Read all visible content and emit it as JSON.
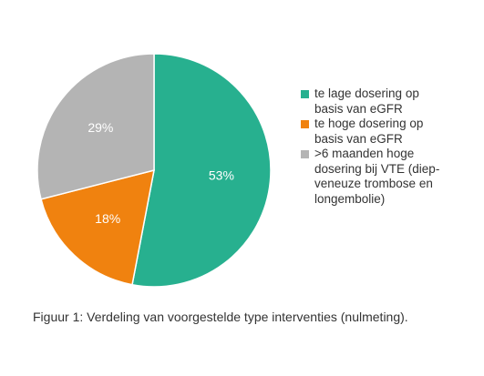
{
  "chart_data": {
    "type": "pie",
    "slices": [
      {
        "label": "te lage dosering op basis van eGFR",
        "value": 53,
        "value_label": "53%",
        "color": "#27b08f"
      },
      {
        "label": "te hoge dosering op basis van eGFR",
        "value": 18,
        "value_label": "18%",
        "color": "#f0820f"
      },
      {
        "label": ">6 maanden hoge dosering bij VTE (diep-veneuze trombose en longembolie)",
        "value": 29,
        "value_label": "29%",
        "color": "#b4b4b4"
      }
    ],
    "start": "top",
    "direction": "clockwise",
    "legend_position": "right"
  },
  "legend": {
    "items": [
      {
        "line1": "te lage dosering op",
        "line2": "basis van eGFR",
        "color": "#27b08f"
      },
      {
        "line1": "te hoge dosering op",
        "line2": "basis van eGFR",
        "color": "#f0820f"
      },
      {
        "line1": ">6 maanden hoge",
        "line2": "dosering bij VTE (diep-",
        "line3": "veneuze trombose en",
        "line4": "longembolie)",
        "color": "#b4b4b4"
      }
    ]
  },
  "caption": "Figuur 1: Verdeling van voorgestelde type interventies (nulmeting)."
}
